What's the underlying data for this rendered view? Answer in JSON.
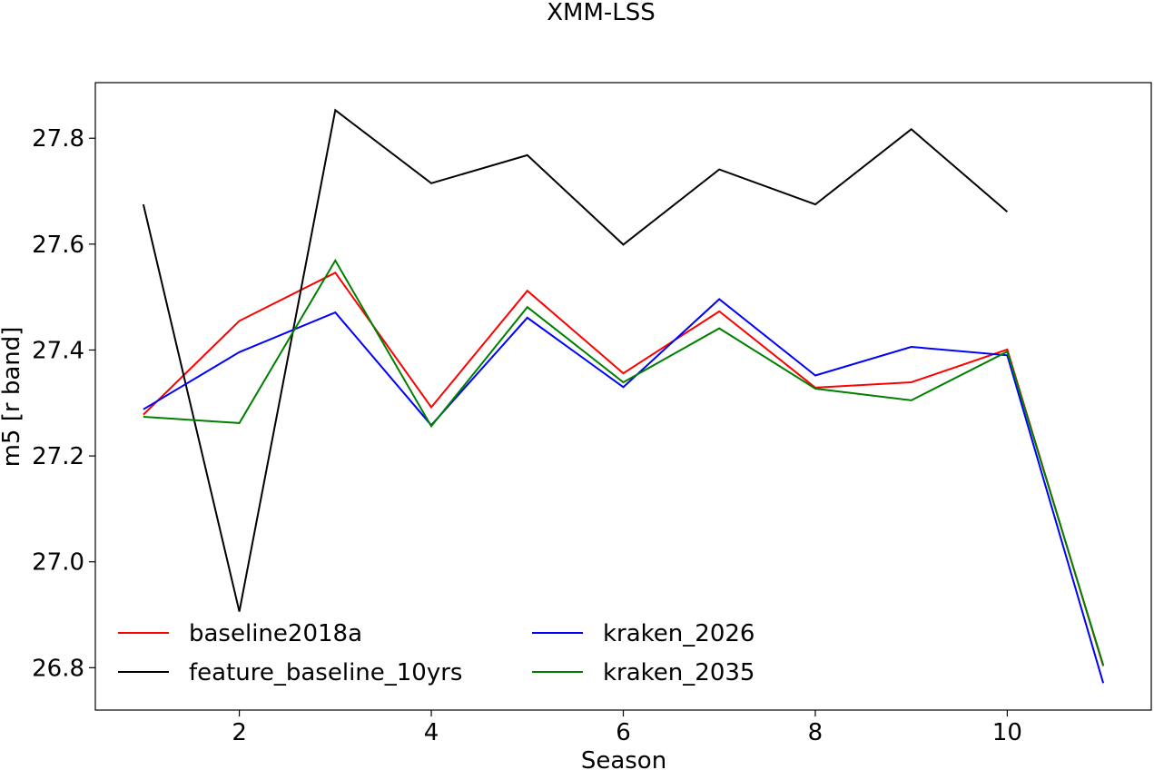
{
  "chart_data": {
    "type": "line",
    "title": "XMM-LSS",
    "xlabel": "Season",
    "ylabel": "m5 [r band]",
    "xlim": [
      0.5,
      11.5
    ],
    "ylim": [
      26.72,
      27.905
    ],
    "xticks": [
      2,
      4,
      6,
      8,
      10
    ],
    "yticks": [
      26.8,
      27.0,
      27.2,
      27.4,
      27.6,
      27.8
    ],
    "xtick_labels": [
      "2",
      "4",
      "6",
      "8",
      "10"
    ],
    "ytick_labels": [
      "26.8",
      "27.0",
      "27.2",
      "27.4",
      "27.6",
      "27.8"
    ],
    "grid": false,
    "legend_position": "lower-left",
    "legend_columns": 2,
    "series": [
      {
        "name": "baseline2018a",
        "color": "#ff0000",
        "x": [
          1,
          2,
          3,
          4,
          5,
          6,
          7,
          8,
          9,
          10,
          11
        ],
        "y": [
          27.278,
          27.455,
          27.546,
          27.292,
          27.512,
          27.356,
          27.473,
          27.329,
          27.339,
          27.401,
          26.803
        ]
      },
      {
        "name": "feature_baseline_10yrs",
        "color": "#000000",
        "x": [
          1,
          2,
          3,
          4,
          5,
          6,
          7,
          8,
          9,
          10
        ],
        "y": [
          27.675,
          26.906,
          27.853,
          27.715,
          27.768,
          27.599,
          27.741,
          27.675,
          27.817,
          27.661
        ]
      },
      {
        "name": "kraken_2026",
        "color": "#0000ff",
        "x": [
          1,
          2,
          3,
          4,
          5,
          6,
          7,
          8,
          9,
          10,
          11
        ],
        "y": [
          27.288,
          27.396,
          27.471,
          27.258,
          27.461,
          27.33,
          27.496,
          27.352,
          27.406,
          27.39,
          26.771
        ]
      },
      {
        "name": "kraken_2035",
        "color": "#008000",
        "x": [
          1,
          2,
          3,
          4,
          5,
          6,
          7,
          8,
          9,
          10,
          11
        ],
        "y": [
          27.274,
          27.262,
          27.569,
          27.256,
          27.481,
          27.339,
          27.441,
          27.327,
          27.305,
          27.397,
          26.805
        ]
      }
    ]
  }
}
